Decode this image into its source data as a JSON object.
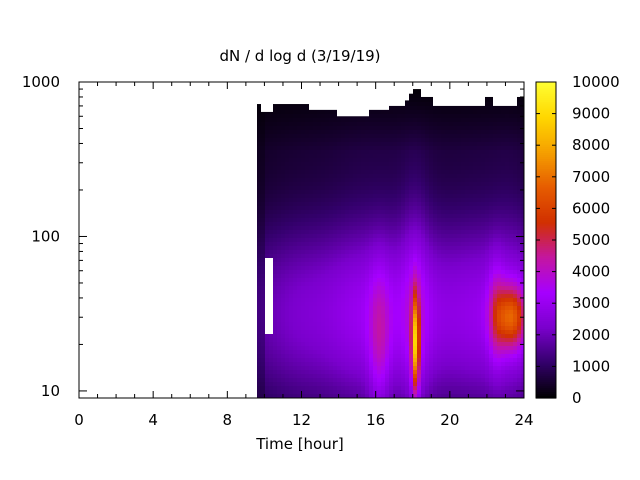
{
  "chart_data": {
    "type": "heatmap",
    "title": "dN / d log d (3/19/19)",
    "xlabel": "Time [hour]",
    "ylabel": "",
    "xlim": [
      0,
      24
    ],
    "ylim": [
      9,
      1000
    ],
    "y_scale": "log",
    "x_ticks": [
      "0",
      "4",
      "8",
      "12",
      "16",
      "20",
      "24"
    ],
    "y_ticks": [
      "10",
      "100",
      "1000"
    ],
    "colorbar": {
      "range": [
        0,
        10000
      ],
      "ticks": [
        "0",
        "1000",
        "2000",
        "3000",
        "4000",
        "5000",
        "6000",
        "7000",
        "8000",
        "9000",
        "10000"
      ],
      "colormap": [
        "#000000",
        "#33006b",
        "#7a00cc",
        "#a600ff",
        "#c4169f",
        "#d13000",
        "#e65c00",
        "#f5a000",
        "#ffd700",
        "#ffff33"
      ]
    },
    "data_time_range": [
      9.6,
      24
    ],
    "gap": {
      "x": [
        10.0,
        10.5
      ],
      "y": [
        24,
        72
      ]
    },
    "upper_boundary": [
      {
        "x": 9.6,
        "y": 720
      },
      {
        "x": 9.8,
        "y": 640
      },
      {
        "x": 10.5,
        "y": 720
      },
      {
        "x": 12.3,
        "y": 660
      },
      {
        "x": 13.9,
        "y": 600
      },
      {
        "x": 15.6,
        "y": 660
      },
      {
        "x": 16.8,
        "y": 700
      },
      {
        "x": 17.5,
        "y": 760
      },
      {
        "x": 17.9,
        "y": 840
      },
      {
        "x": 18.1,
        "y": 900
      },
      {
        "x": 18.5,
        "y": 800
      },
      {
        "x": 19.0,
        "y": 700
      },
      {
        "x": 21.9,
        "y": 800
      },
      {
        "x": 22.4,
        "y": 700
      },
      {
        "x": 23.6,
        "y": 800
      },
      {
        "x": 24.0,
        "y": 800
      }
    ],
    "features": [
      {
        "desc": "plume",
        "x": 18.15,
        "y": 20,
        "peak": 6500
      },
      {
        "desc": "late-day mode",
        "x": 23.3,
        "y": 30,
        "peak": 6200
      }
    ]
  }
}
